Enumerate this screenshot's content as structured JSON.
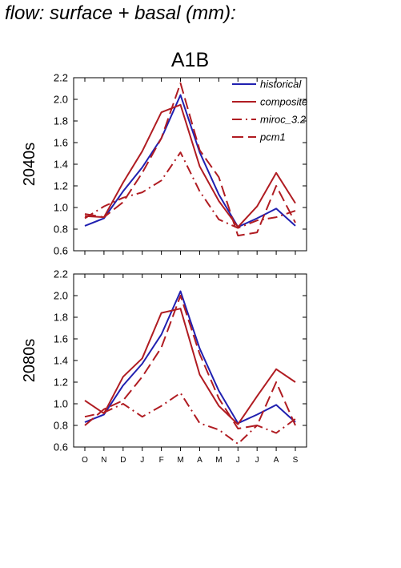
{
  "figure": {
    "top_title": "d flow: surface + basal (mm):"
  },
  "chart_data": [
    {
      "type": "line",
      "title": "A1B",
      "ylabel": "2040s",
      "xlabel": "",
      "categories": [
        "O",
        "N",
        "D",
        "J",
        "F",
        "M",
        "A",
        "M",
        "J",
        "J",
        "A",
        "S"
      ],
      "ylim": [
        0.6,
        2.2
      ],
      "yticks": [
        0.6,
        0.8,
        1.0,
        1.2,
        1.4,
        1.6,
        1.8,
        2.0,
        2.2
      ],
      "show_xlabels": false,
      "legend": {
        "placement": "top-right"
      },
      "grid": false,
      "series": [
        {
          "name": "historical",
          "color": "#2020b0",
          "dash": "solid",
          "values": [
            0.83,
            0.9,
            1.15,
            1.37,
            1.64,
            2.04,
            1.51,
            1.12,
            0.82,
            0.9,
            0.99,
            0.83
          ]
        },
        {
          "name": "composite",
          "color": "#b01c22",
          "dash": "solid",
          "values": [
            0.92,
            0.91,
            1.23,
            1.52,
            1.88,
            1.95,
            1.38,
            1.06,
            0.82,
            1.01,
            1.32,
            1.04
          ]
        },
        {
          "name": "miroc_3.2",
          "color": "#b01c22",
          "dash": "dashdot",
          "values": [
            0.9,
            1.01,
            1.09,
            1.14,
            1.25,
            1.51,
            1.15,
            0.89,
            0.81,
            0.88,
            0.91,
            0.97
          ]
        },
        {
          "name": "pcm1",
          "color": "#b01c22",
          "dash": "dash",
          "values": [
            0.94,
            0.91,
            1.05,
            1.32,
            1.64,
            2.15,
            1.53,
            1.28,
            0.74,
            0.77,
            1.2,
            0.86
          ]
        }
      ]
    },
    {
      "type": "line",
      "title": "",
      "ylabel": "2080s",
      "xlabel": "",
      "categories": [
        "O",
        "N",
        "D",
        "J",
        "F",
        "M",
        "A",
        "M",
        "J",
        "J",
        "A",
        "S"
      ],
      "ylim": [
        0.6,
        2.2
      ],
      "yticks": [
        0.6,
        0.8,
        1.0,
        1.2,
        1.4,
        1.6,
        1.8,
        2.0,
        2.2
      ],
      "show_xlabels": true,
      "grid": false,
      "series": [
        {
          "name": "historical",
          "color": "#2020b0",
          "dash": "solid",
          "values": [
            0.83,
            0.9,
            1.17,
            1.37,
            1.64,
            2.04,
            1.51,
            1.12,
            0.82,
            0.9,
            0.99,
            0.83
          ]
        },
        {
          "name": "composite",
          "color": "#b01c22",
          "dash": "solid",
          "values": [
            1.03,
            0.91,
            1.25,
            1.42,
            1.84,
            1.88,
            1.27,
            0.98,
            0.81,
            1.07,
            1.32,
            1.2
          ]
        },
        {
          "name": "miroc_3.2",
          "color": "#b01c22",
          "dash": "dashdot",
          "values": [
            0.88,
            0.92,
            1.0,
            0.88,
            0.98,
            1.1,
            0.82,
            0.76,
            0.63,
            0.8,
            0.73,
            0.86
          ]
        },
        {
          "name": "pcm1",
          "color": "#b01c22",
          "dash": "dash",
          "values": [
            0.8,
            0.95,
            1.03,
            1.25,
            1.52,
            2.0,
            1.46,
            1.05,
            0.77,
            0.8,
            1.2,
            0.8
          ]
        }
      ]
    }
  ]
}
